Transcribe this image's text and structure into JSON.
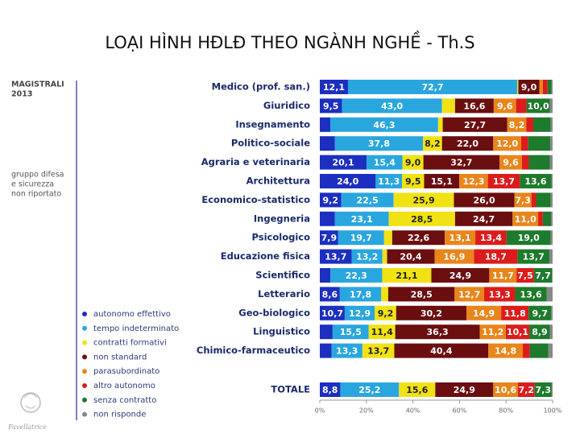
{
  "chart_data": {
    "type": "stacked-bar-horizontal",
    "title": "LOẠI HÌNH HĐLĐ THEO NGÀNH NGHỀ - Th.S",
    "side_title": [
      "MAGISTRALI",
      "2013"
    ],
    "side_note": [
      "gruppo difesa",
      "e sicurezza",
      "non riportato"
    ],
    "logo": "Favellatrice",
    "categories": [
      "Medico (prof. san.)",
      "Giuridico",
      "Insegnamento",
      "Politico-sociale",
      "Agraria e veterinaria",
      "Architettura",
      "Economico-statistico",
      "Ingegneria",
      "Psicologico",
      "Educazione fisica",
      "Scientifico",
      "Letterario",
      "Geo-biologico",
      "Linguistico",
      "Chimico-farmaceutico",
      "TOTALE"
    ],
    "xlim": [
      0,
      100
    ],
    "xticks": [
      {
        "value": 0,
        "label": "0%"
      },
      {
        "value": 20,
        "label": "20%"
      },
      {
        "value": 40,
        "label": "40%"
      },
      {
        "value": 60,
        "label": "60%"
      },
      {
        "value": 80,
        "label": "80%"
      },
      {
        "value": 100,
        "label": "100%"
      }
    ],
    "series": [
      {
        "name": "autonomo effettivo",
        "color": "#1c2fc0",
        "values": [
          12.1,
          9.5,
          4.5,
          6.5,
          20.1,
          24.0,
          9.2,
          6.5,
          7.9,
          13.7,
          4.5,
          8.6,
          10.7,
          5.5,
          5.0,
          8.8
        ],
        "value_labels": [
          "12,1",
          "9,5",
          null,
          null,
          "20,1",
          "24,0",
          "9,2",
          null,
          "7,9",
          "13,7",
          null,
          "8,6",
          "10,7",
          null,
          null,
          "8,8"
        ]
      },
      {
        "name": "tempo indeterminato",
        "color": "#2aa6df",
        "values": [
          72.7,
          43.0,
          46.3,
          37.8,
          15.4,
          11.3,
          22.5,
          23.1,
          19.7,
          13.2,
          22.3,
          17.8,
          12.9,
          15.5,
          13.3,
          25.2
        ],
        "value_labels": [
          "72,7",
          "43,0",
          "46,3",
          "37,8",
          "15,4",
          "11,3",
          "22,5",
          "23,1",
          "19,7",
          "13,2",
          "22,3",
          "17,8",
          "12,9",
          "15,5",
          "13,3",
          "25,2"
        ]
      },
      {
        "name": "contratti formativi",
        "color": "#f0e214",
        "values": [
          0.5,
          5.6,
          2.0,
          8.2,
          9.0,
          9.5,
          25.9,
          28.5,
          3.5,
          2.0,
          21.1,
          3.0,
          9.2,
          11.4,
          13.7,
          15.6
        ],
        "value_labels": [
          null,
          null,
          null,
          "8,2",
          "9,0",
          "9,5",
          "25,9",
          "28,5",
          null,
          null,
          "21,1",
          null,
          "9,2",
          "11,4",
          "13,7",
          "15,6"
        ]
      },
      {
        "name": "non standard",
        "color": "#6a0e10",
        "values": [
          9.0,
          16.6,
          27.7,
          22.0,
          32.7,
          15.1,
          26.0,
          24.7,
          22.6,
          20.4,
          24.9,
          28.5,
          30.2,
          36.3,
          40.4,
          24.9
        ],
        "value_labels": [
          "9,0",
          "16,6",
          "27,7",
          "22,0",
          "32,7",
          "15,1",
          "26,0",
          "24,7",
          "22,6",
          "20,4",
          "24,9",
          "28,5",
          "30,2",
          "36,3",
          "40,4",
          "24,9"
        ]
      },
      {
        "name": "parasubordinato",
        "color": "#e8861c",
        "values": [
          1.5,
          9.6,
          8.2,
          12.0,
          9.6,
          12.3,
          7.3,
          11.0,
          13.1,
          16.9,
          11.7,
          12.7,
          14.9,
          11.2,
          14.8,
          10.6
        ],
        "value_labels": [
          null,
          "9,6",
          "8,2",
          "12,0",
          "9,6",
          "12,3",
          "7,3",
          "11,0",
          "13,1",
          "16,9",
          "11,7",
          "12,7",
          "14,9",
          "11,2",
          "14,8",
          "10,6"
        ]
      },
      {
        "name": "altro autonomo",
        "color": "#dc1c1c",
        "values": [
          2.0,
          4.5,
          3.0,
          3.0,
          3.0,
          13.7,
          2.0,
          2.0,
          13.4,
          18.7,
          7.5,
          13.3,
          11.8,
          10.1,
          3.0,
          7.2
        ],
        "value_labels": [
          null,
          null,
          null,
          null,
          null,
          "13,7",
          null,
          null,
          "13,4",
          "18,7",
          "7,5",
          "13,3",
          "11,8",
          "10,1",
          null,
          "7,2"
        ]
      },
      {
        "name": "senza contratto",
        "color": "#1e7a2c",
        "values": [
          1.7,
          10.0,
          7.5,
          9.5,
          9.0,
          13.6,
          6.3,
          3.5,
          19.0,
          13.7,
          7.7,
          13.6,
          9.7,
          8.9,
          8.0,
          7.3
        ],
        "value_labels": [
          null,
          "10,0",
          null,
          null,
          null,
          "13,6",
          null,
          null,
          "19,0",
          "13,7",
          "7,7",
          "13,6",
          "9,7",
          "8,9",
          null,
          "7,3"
        ]
      },
      {
        "name": "non risponde",
        "color": "#888888",
        "values": [
          0.5,
          1.2,
          0.8,
          1.0,
          1.2,
          0.5,
          0.8,
          0.7,
          0.8,
          1.4,
          0.3,
          2.5,
          0.6,
          1.1,
          1.8,
          0.4
        ],
        "value_labels": [
          null,
          null,
          null,
          null,
          null,
          null,
          null,
          null,
          null,
          null,
          null,
          null,
          null,
          null,
          null,
          null
        ]
      }
    ]
  }
}
